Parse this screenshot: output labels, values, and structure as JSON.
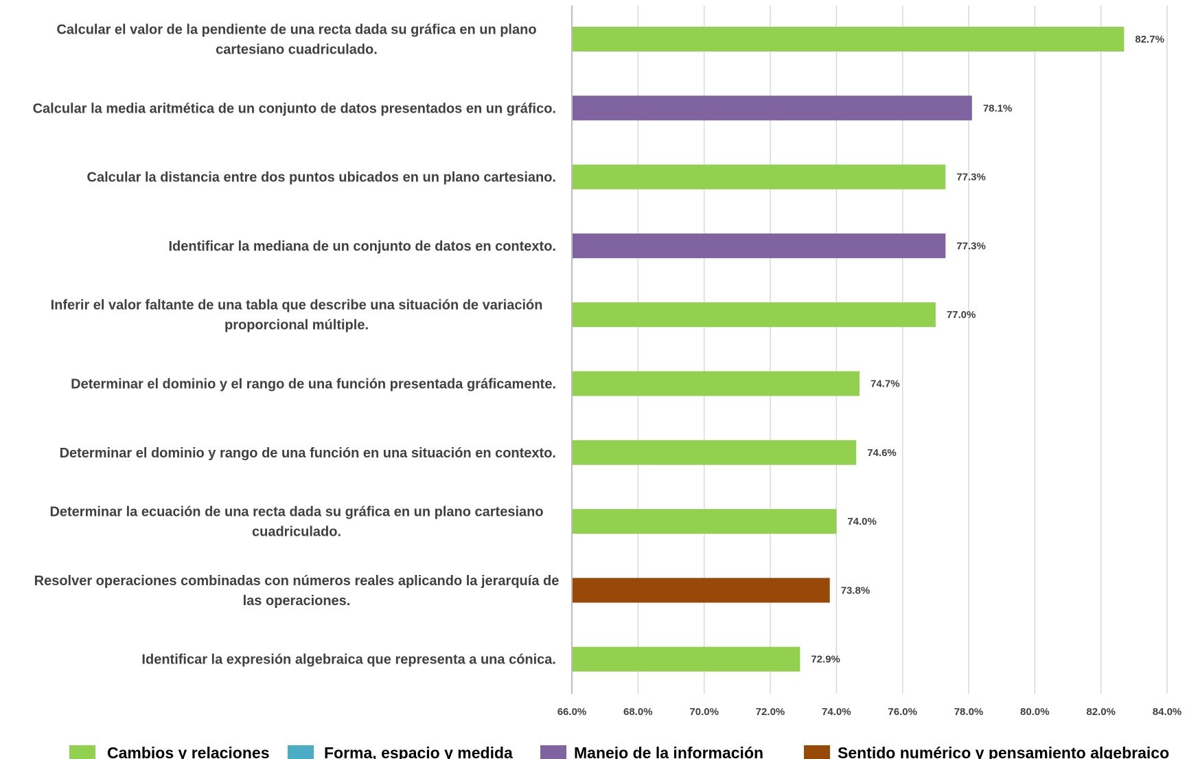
{
  "chart_data": {
    "type": "bar",
    "orientation": "horizontal",
    "xlim": [
      66.0,
      84.0
    ],
    "ticks": [
      "66.0%",
      "68.0%",
      "70.0%",
      "72.0%",
      "74.0%",
      "76.0%",
      "78.0%",
      "80.0%",
      "82.0%",
      "84.0%"
    ],
    "tick_values": [
      66,
      68,
      70,
      72,
      74,
      76,
      78,
      80,
      82,
      84
    ],
    "grid": "vertical",
    "legend_position": "bottom",
    "categories": [
      [
        "Calcular el valor de la pendiente de una recta dada su gráfica en un plano",
        "cartesiano cuadriculado."
      ],
      [
        "Calcular la media aritmética de un conjunto de datos presentados en un gráfico."
      ],
      [
        "Calcular la distancia entre dos puntos ubicados en un plano cartesiano."
      ],
      [
        "Identificar la mediana de un conjunto de datos en contexto."
      ],
      [
        "Inferir el valor faltante de una tabla que describe una situación de variación",
        "proporcional múltiple."
      ],
      [
        "Determinar el dominio y el rango de una función presentada gráficamente."
      ],
      [
        "Determinar el dominio y rango de una función en una situación en contexto."
      ],
      [
        "Determinar la ecuación de una recta dada su gráfica en un plano cartesiano",
        "cuadriculado."
      ],
      [
        "Resolver operaciones combinadas con números reales aplicando la jerarquía de",
        "las operaciones."
      ],
      [
        "Identificar la expresión algebraica que representa a una cónica."
      ]
    ],
    "values": [
      82.7,
      78.1,
      77.3,
      77.3,
      77.0,
      74.7,
      74.6,
      74.0,
      73.8,
      72.9
    ],
    "value_labels": [
      "82.7%",
      "78.1%",
      "77.3%",
      "77.3%",
      "77.0%",
      "74.7%",
      "74.6%",
      "74.0%",
      "73.8%",
      "72.9%"
    ],
    "series_index": [
      0,
      2,
      0,
      2,
      0,
      0,
      0,
      0,
      3,
      0
    ],
    "series": [
      {
        "name": "Cambios y relaciones",
        "color": "#92d050"
      },
      {
        "name": "Forma, espacio y medida",
        "color": "#4bacc6"
      },
      {
        "name": "Manejo de la información",
        "color": "#8064a2"
      },
      {
        "name": "Sentido numérico y pensamiento algebraico",
        "color": "#984807"
      }
    ]
  }
}
